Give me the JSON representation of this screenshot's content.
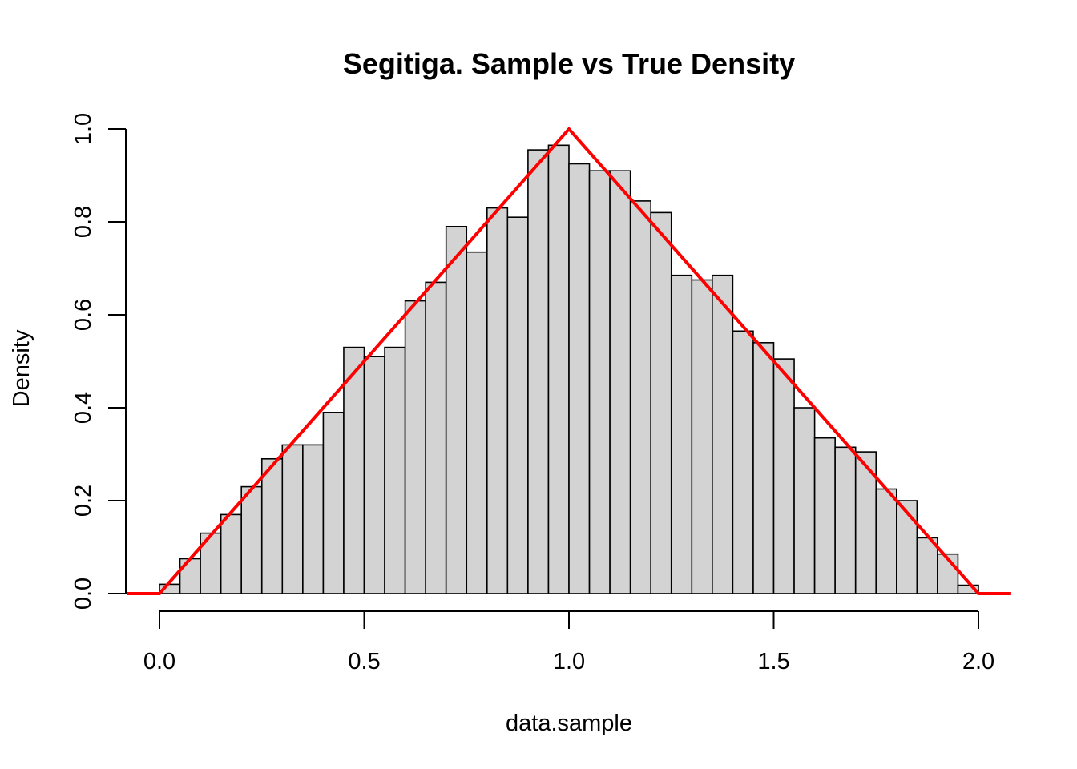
{
  "chart_data": {
    "type": "bar",
    "title": "Segitiga. Sample vs True Density",
    "xlabel": "data.sample",
    "ylabel": "Density",
    "xlim": [
      -0.08,
      2.08
    ],
    "ylim": [
      0,
      1.0
    ],
    "x_ticks": [
      "0.0",
      "0.5",
      "1.0",
      "1.5",
      "2.0"
    ],
    "y_ticks": [
      "0.0",
      "0.2",
      "0.4",
      "0.6",
      "0.8",
      "1.0"
    ],
    "bin_width": 0.05,
    "bins": [
      {
        "start": 0.0,
        "value": 0.02
      },
      {
        "start": 0.05,
        "value": 0.075
      },
      {
        "start": 0.1,
        "value": 0.13
      },
      {
        "start": 0.15,
        "value": 0.17
      },
      {
        "start": 0.2,
        "value": 0.23
      },
      {
        "start": 0.25,
        "value": 0.29
      },
      {
        "start": 0.3,
        "value": 0.32
      },
      {
        "start": 0.35,
        "value": 0.32
      },
      {
        "start": 0.4,
        "value": 0.39
      },
      {
        "start": 0.45,
        "value": 0.53
      },
      {
        "start": 0.5,
        "value": 0.51
      },
      {
        "start": 0.55,
        "value": 0.53
      },
      {
        "start": 0.6,
        "value": 0.63
      },
      {
        "start": 0.65,
        "value": 0.67
      },
      {
        "start": 0.7,
        "value": 0.79
      },
      {
        "start": 0.75,
        "value": 0.735
      },
      {
        "start": 0.8,
        "value": 0.83
      },
      {
        "start": 0.85,
        "value": 0.81
      },
      {
        "start": 0.9,
        "value": 0.955
      },
      {
        "start": 0.95,
        "value": 0.965
      },
      {
        "start": 1.0,
        "value": 0.925
      },
      {
        "start": 1.05,
        "value": 0.91
      },
      {
        "start": 1.1,
        "value": 0.91
      },
      {
        "start": 1.15,
        "value": 0.845
      },
      {
        "start": 1.2,
        "value": 0.82
      },
      {
        "start": 1.25,
        "value": 0.685
      },
      {
        "start": 1.3,
        "value": 0.675
      },
      {
        "start": 1.35,
        "value": 0.685
      },
      {
        "start": 1.4,
        "value": 0.565
      },
      {
        "start": 1.45,
        "value": 0.54
      },
      {
        "start": 1.5,
        "value": 0.505
      },
      {
        "start": 1.55,
        "value": 0.4
      },
      {
        "start": 1.6,
        "value": 0.335
      },
      {
        "start": 1.65,
        "value": 0.315
      },
      {
        "start": 1.7,
        "value": 0.305
      },
      {
        "start": 1.75,
        "value": 0.225
      },
      {
        "start": 1.8,
        "value": 0.2
      },
      {
        "start": 1.85,
        "value": 0.12
      },
      {
        "start": 1.9,
        "value": 0.085
      },
      {
        "start": 1.95,
        "value": 0.018
      }
    ],
    "bar_fill": "#d3d3d3",
    "bar_stroke": "#000000",
    "series": [
      {
        "type": "line",
        "color": "#ff0000",
        "x": [
          -0.08,
          0.0,
          1.0,
          2.0,
          2.08
        ],
        "y": [
          0.0,
          0.0,
          1.0,
          0.0,
          0.0
        ]
      }
    ]
  }
}
